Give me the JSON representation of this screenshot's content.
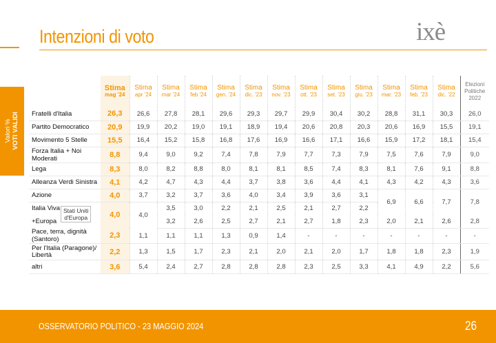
{
  "title": "Intenzioni di voto",
  "logo": {
    "text": "ixè",
    "accent": "#f29400"
  },
  "side_label": {
    "line1": "Valori %",
    "line2": "VOTI VALIDI"
  },
  "footer": {
    "text": "OSSERVATORIO POLITICO - 23 MAGGIO 2024",
    "page": "26"
  },
  "colors": {
    "accent": "#f29400",
    "text": "#222222"
  },
  "columns": [
    {
      "l1": "Stima",
      "l2": "mag '24",
      "current": true
    },
    {
      "l1": "Stima",
      "l2": "apr '24"
    },
    {
      "l1": "Stima",
      "l2": "mar '24"
    },
    {
      "l1": "Stima",
      "l2": "feb '24"
    },
    {
      "l1": "Stima",
      "l2": "gen. '24"
    },
    {
      "l1": "Stima",
      "l2": "dic. '23"
    },
    {
      "l1": "Stima",
      "l2": "nov. '23"
    },
    {
      "l1": "Stima",
      "l2": "ott. '23"
    },
    {
      "l1": "Stima",
      "l2": "set. '23"
    },
    {
      "l1": "Stima",
      "l2": "giu. '23"
    },
    {
      "l1": "Stima",
      "l2": "mar. '23"
    },
    {
      "l1": "Stima",
      "l2": "feb. '23"
    },
    {
      "l1": "Stima",
      "l2": "dic. '22"
    }
  ],
  "elections_header": {
    "l1": "Elezioni",
    "l2": "Politiche",
    "l3": "2022"
  },
  "rows": [
    {
      "party": "Fratelli d'Italia",
      "values": [
        "26,3",
        "26,6",
        "27,8",
        "28,1",
        "29,6",
        "29,3",
        "29,7",
        "29,9",
        "30,4",
        "30,2",
        "28,8",
        "31,1",
        "30,3"
      ],
      "elez": "26,0"
    },
    {
      "party": "Partito Democratico",
      "values": [
        "20,9",
        "19,9",
        "20,2",
        "19,0",
        "19,1",
        "18,9",
        "19,4",
        "20,6",
        "20,8",
        "20,3",
        "20,6",
        "16,9",
        "15,5"
      ],
      "elez": "19,1"
    },
    {
      "party": "Movimento 5 Stelle",
      "values": [
        "15,5",
        "16,4",
        "15,2",
        "15,8",
        "16,8",
        "17,6",
        "16,9",
        "16,6",
        "17,1",
        "16,6",
        "15,9",
        "17,2",
        "18,1"
      ],
      "elez": "15,4"
    },
    {
      "party": "Forza Italia + Noi Moderati",
      "values": [
        "8,8",
        "9,4",
        "9,0",
        "9,2",
        "7,4",
        "7,8",
        "7,9",
        "7,7",
        "7,3",
        "7,9",
        "7,5",
        "7,6",
        "7,9"
      ],
      "elez": "9,0"
    },
    {
      "party": "Lega",
      "values": [
        "8,3",
        "8,0",
        "8,2",
        "8,8",
        "8,0",
        "8,1",
        "8,1",
        "8,5",
        "7,4",
        "8,3",
        "8,1",
        "7,6",
        "9,1"
      ],
      "elez": "8,8"
    },
    {
      "party": "Alleanza Verdi Sinistra",
      "values": [
        "4,1",
        "4,2",
        "4,7",
        "4,3",
        "4,4",
        "3,7",
        "3,8",
        "3,6",
        "4,4",
        "4,1",
        "4,3",
        "4,2",
        "4,3"
      ],
      "elez": "3,6"
    }
  ],
  "azione": {
    "party": "Azione",
    "values": [
      "4,0",
      "3,7",
      "3,2",
      "3,7",
      "3,6",
      "4,0",
      "3,4",
      "3,9",
      "3,6",
      "3,1"
    ]
  },
  "iv": {
    "party_line1": "Italia Viva",
    "party_line2": "+Europa",
    "box_line1": "Stati Uniti",
    "box_line2": "d'Europa",
    "cur": "4,0",
    "apr": "4,0",
    "iv_values": [
      "3,5",
      "3,0",
      "2,2",
      "2,1",
      "2,5",
      "2,1",
      "2,7",
      "2,2"
    ],
    "eu_values": [
      "3,2",
      "2,6",
      "2,5",
      "2,7",
      "2,1",
      "2,7",
      "1,8",
      "2,3"
    ]
  },
  "merged": {
    "terzo_polo": [
      "6,9",
      "6,6",
      "7,7"
    ],
    "terzo_polo_elez": "7,8",
    "europa": [
      "2,0",
      "2,1",
      "2,6"
    ],
    "europa_elez": "2,8"
  },
  "rest": [
    {
      "party": "Pace, terra, dignità (Santoro)",
      "values": [
        "2,3",
        "1,1",
        "1,1",
        "1,1",
        "1,3",
        "0,9",
        "1,4",
        "-",
        "-",
        "-",
        "-",
        "-",
        "-"
      ],
      "elez": "-"
    },
    {
      "party_line1": "Per l'Italia (Paragone)/",
      "party_line2": "Libertà",
      "values": [
        "2,2",
        "1,3",
        "1,5",
        "1,7",
        "2,3",
        "2,1",
        "2,0",
        "2,1",
        "2,0",
        "1,7",
        "1,8",
        "1,8",
        "2,3"
      ],
      "elez": "1,9"
    },
    {
      "party": "altri",
      "values": [
        "3,6",
        "5,4",
        "2,4",
        "2,7",
        "2,8",
        "2,8",
        "2,8",
        "2,3",
        "2,5",
        "3,3",
        "4,1",
        "4,9",
        "2,2"
      ],
      "elez": "5,6"
    }
  ]
}
